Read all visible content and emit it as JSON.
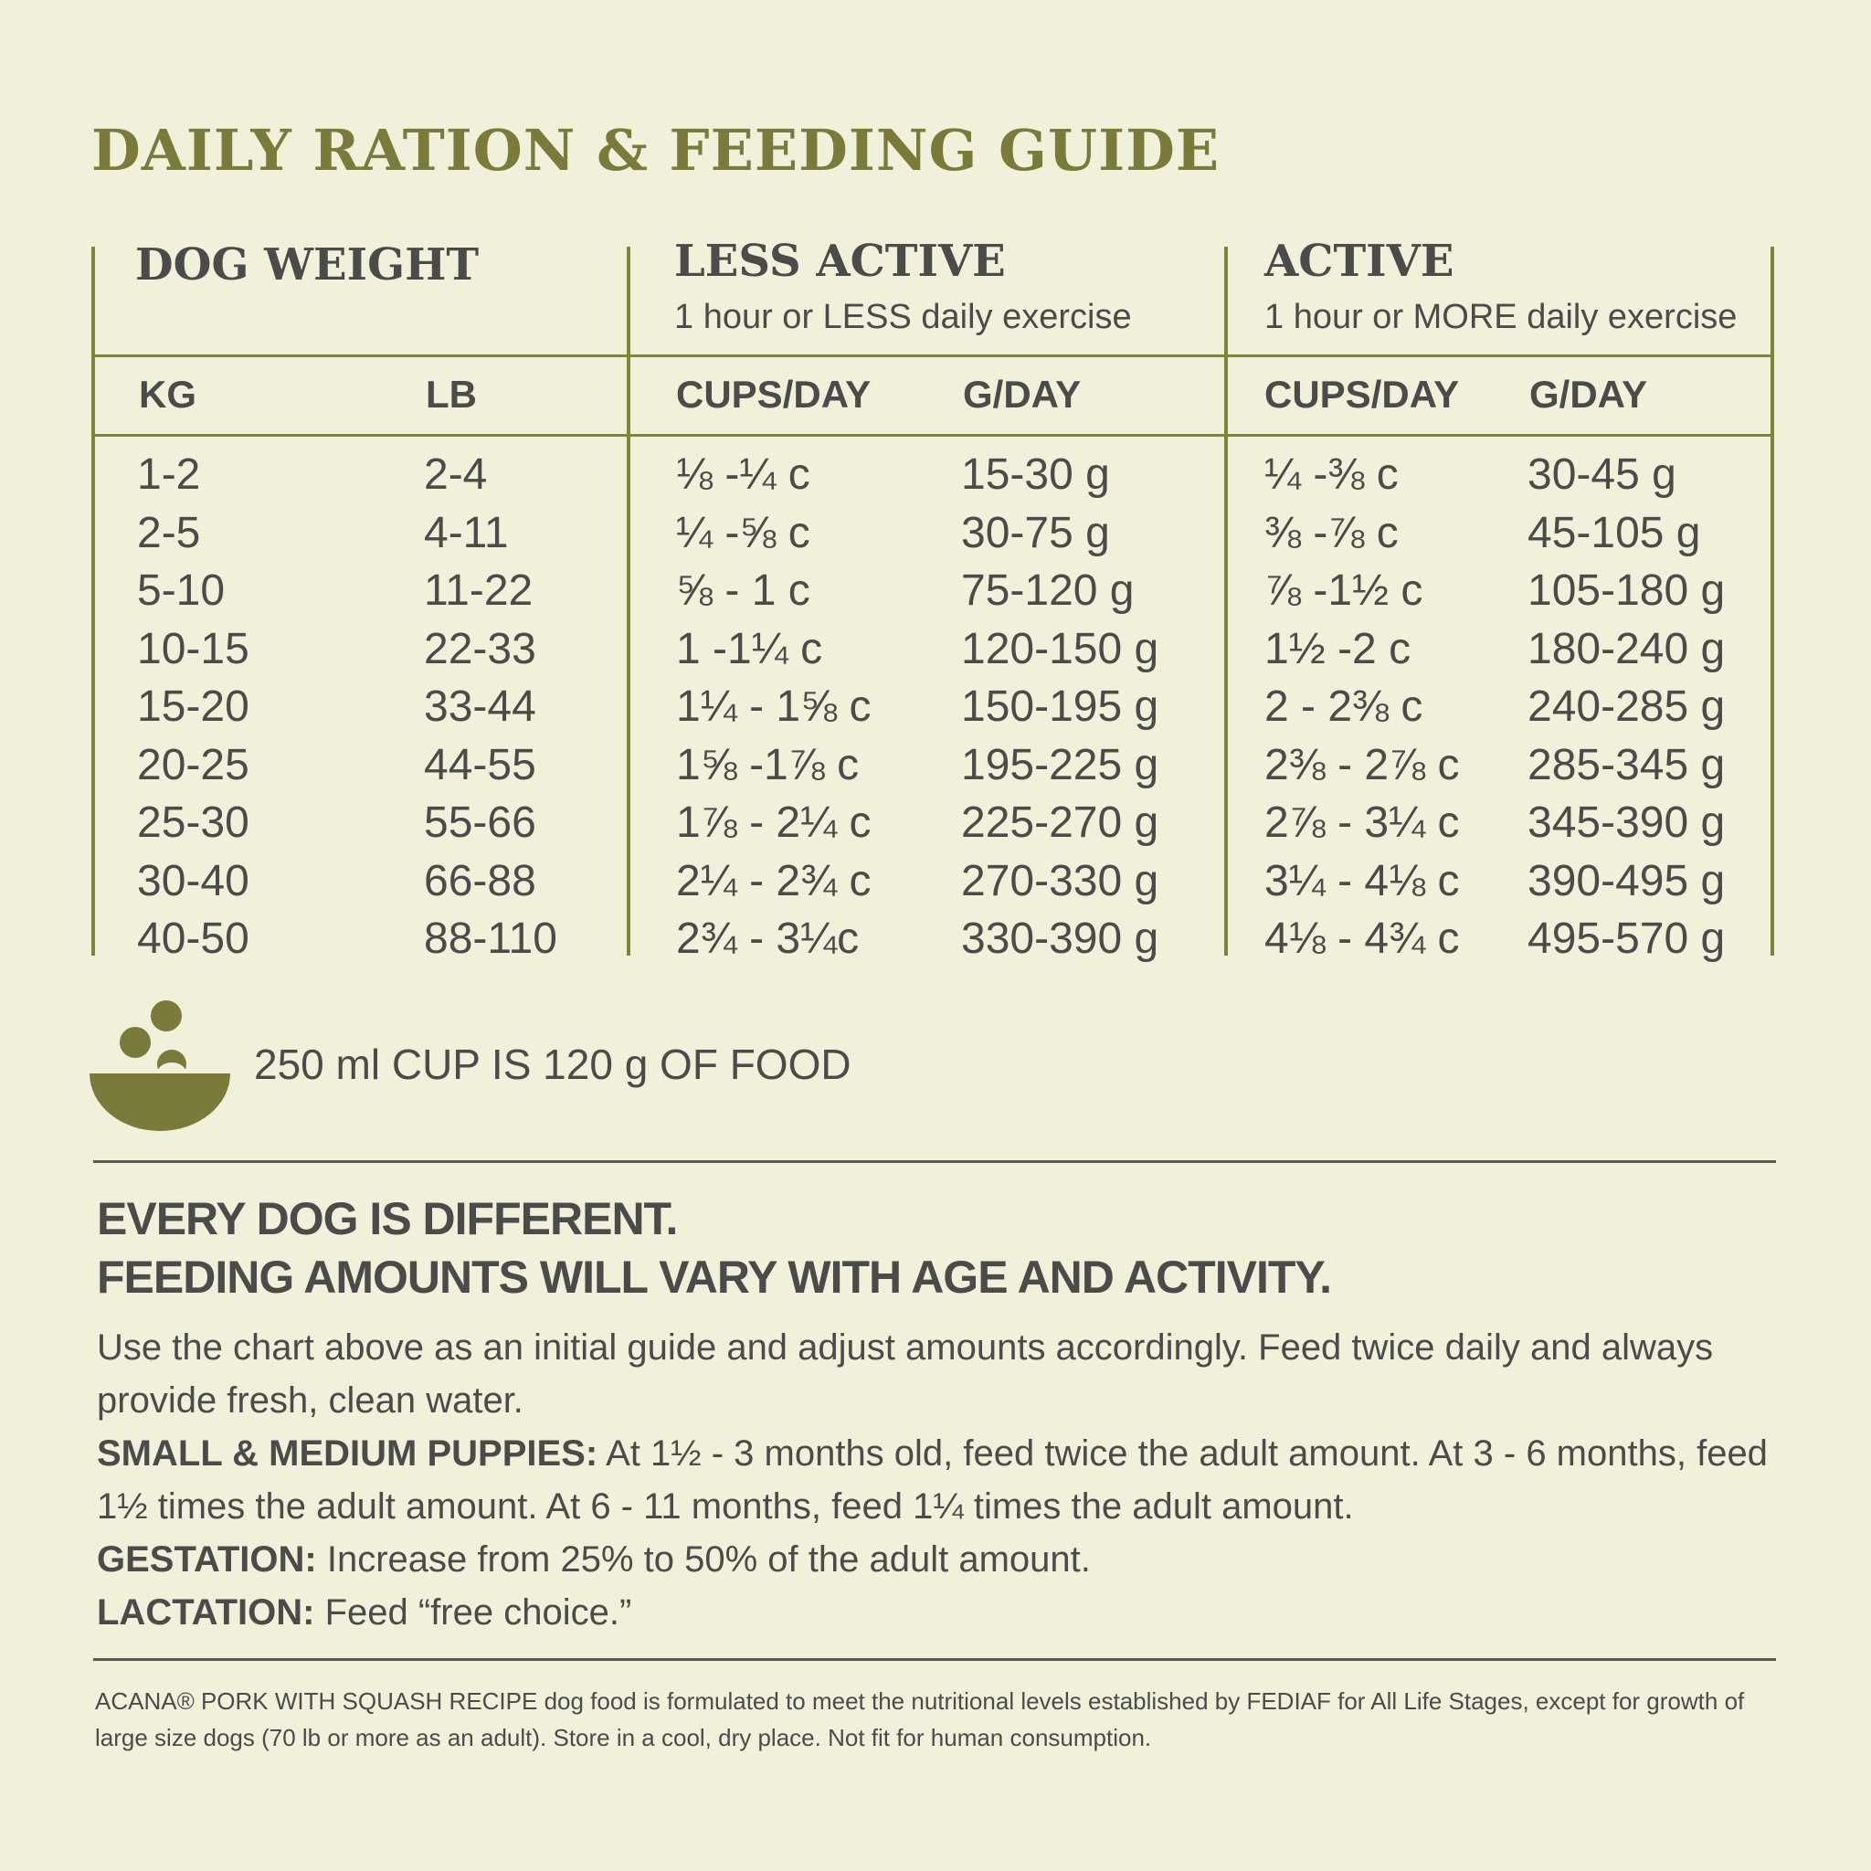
{
  "title": "DAILY RATION & FEEDING GUIDE",
  "groups": {
    "dog_weight": {
      "heading": "DOG WEIGHT"
    },
    "less_active": {
      "heading": "LESS ACTIVE",
      "sub": "1 hour or LESS daily exercise"
    },
    "active": {
      "heading": "ACTIVE",
      "sub": "1 hour or MORE daily exercise"
    }
  },
  "columns": {
    "kg": "KG",
    "lb": "LB",
    "less_cups": "CUPS/DAY",
    "less_g": "G/DAY",
    "active_cups": "CUPS/DAY",
    "active_g": "G/DAY"
  },
  "rows": [
    {
      "kg": "1-2",
      "lb": "2-4",
      "less_cups": "⅛ -¼ c",
      "less_g": "15-30 g",
      "active_cups": "¼ -⅜ c",
      "active_g": "30-45 g"
    },
    {
      "kg": "2-5",
      "lb": "4-11",
      "less_cups": "¼ -⅝ c",
      "less_g": "30-75 g",
      "active_cups": "⅜ -⅞ c",
      "active_g": "45-105 g"
    },
    {
      "kg": "5-10",
      "lb": "11-22",
      "less_cups": "⅝ - 1 c",
      "less_g": "75-120 g",
      "active_cups": "⅞ -1½ c",
      "active_g": "105-180 g"
    },
    {
      "kg": "10-15",
      "lb": "22-33",
      "less_cups": "1 -1¼ c",
      "less_g": "120-150 g",
      "active_cups": "1½ -2 c",
      "active_g": "180-240 g"
    },
    {
      "kg": "15-20",
      "lb": "33-44",
      "less_cups": "1¼ - 1⅝ c",
      "less_g": "150-195 g",
      "active_cups": "2 - 2⅜ c",
      "active_g": "240-285 g"
    },
    {
      "kg": "20-25",
      "lb": "44-55",
      "less_cups": "1⅝ -1⅞ c",
      "less_g": "195-225 g",
      "active_cups": "2⅜ - 2⅞ c",
      "active_g": "285-345 g"
    },
    {
      "kg": "25-30",
      "lb": "55-66",
      "less_cups": "1⅞ - 2¼ c",
      "less_g": "225-270 g",
      "active_cups": "2⅞ - 3¼ c",
      "active_g": "345-390 g"
    },
    {
      "kg": "30-40",
      "lb": "66-88",
      "less_cups": "2¼ - 2¾ c",
      "less_g": "270-330 g",
      "active_cups": "3¼ - 4⅛ c",
      "active_g": "390-495 g"
    },
    {
      "kg": "40-50",
      "lb": "88-110",
      "less_cups": "2¾ - 3¼c",
      "less_g": "330-390 g",
      "active_cups": "4⅛ - 4¾ c",
      "active_g": "495-570 g"
    }
  ],
  "cup_note": "250 ml CUP IS 120 g OF FOOD",
  "icon": {
    "name": "food-bowl-icon",
    "color": "#7a7b3a"
  },
  "colors": {
    "accent": "#7a7b3a",
    "text": "#4b4b49",
    "background": "#f0f0db"
  },
  "notes": {
    "heading_line1": "EVERY DOG IS DIFFERENT.",
    "heading_line2": "FEEDING AMOUNTS WILL VARY WITH AGE AND ACTIVITY.",
    "intro": "Use the chart above as an initial guide and adjust amounts accordingly. Feed twice daily and always provide fresh, clean water.",
    "puppies_label": "SMALL & MEDIUM PUPPIES:",
    "puppies_text": " At 1½ - 3 months old, feed twice the adult amount. At 3 - 6 months, feed 1½ times the adult amount. At 6 - 11 months, feed 1¼ times the adult amount.",
    "gestation_label": "GESTATION:",
    "gestation_text": " Increase from 25% to 50% of the adult amount.",
    "lactation_label": "LACTATION:",
    "lactation_text": " Feed “free choice.”"
  },
  "footer": "ACANA® PORK WITH SQUASH RECIPE dog food is formulated to meet the nutritional levels established by FEDIAF for All Life Stages, except for growth of large size dogs (70 lb or more as an adult). Store in a cool, dry place. Not fit for human consumption."
}
